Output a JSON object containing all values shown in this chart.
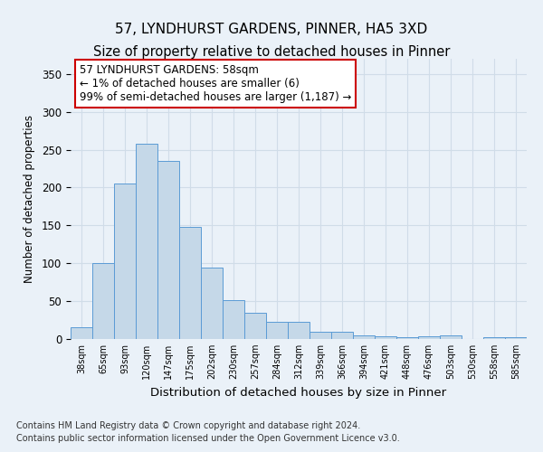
{
  "title": "57, LYNDHURST GARDENS, PINNER, HA5 3XD",
  "subtitle": "Size of property relative to detached houses in Pinner",
  "xlabel": "Distribution of detached houses by size in Pinner",
  "ylabel": "Number of detached properties",
  "bar_values": [
    15,
    100,
    205,
    258,
    235,
    148,
    94,
    51,
    35,
    23,
    23,
    10,
    9,
    5,
    3,
    2,
    3,
    5,
    0,
    2,
    2
  ],
  "bar_labels": [
    "38sqm",
    "65sqm",
    "93sqm",
    "120sqm",
    "147sqm",
    "175sqm",
    "202sqm",
    "230sqm",
    "257sqm",
    "284sqm",
    "312sqm",
    "339sqm",
    "366sqm",
    "394sqm",
    "421sqm",
    "448sqm",
    "476sqm",
    "503sqm",
    "530sqm",
    "558sqm",
    "585sqm"
  ],
  "bar_color": "#c5d8e8",
  "bar_edge_color": "#5b9bd5",
  "annotation_line1": "57 LYNDHURST GARDENS: 58sqm",
  "annotation_line2": "← 1% of detached houses are smaller (6)",
  "annotation_line3": "99% of semi-detached houses are larger (1,187) →",
  "annotation_box_color": "#ffffff",
  "annotation_box_edge_color": "#cc0000",
  "ylim": [
    0,
    370
  ],
  "yticks": [
    0,
    50,
    100,
    150,
    200,
    250,
    300,
    350
  ],
  "grid_color": "#d0dce8",
  "background_color": "#eaf1f8",
  "footer": "Contains HM Land Registry data © Crown copyright and database right 2024.\nContains public sector information licensed under the Open Government Licence v3.0.",
  "title_fontsize": 11,
  "xlabel_fontsize": 9.5,
  "ylabel_fontsize": 8.5,
  "annotation_fontsize": 8.5,
  "footer_fontsize": 7
}
